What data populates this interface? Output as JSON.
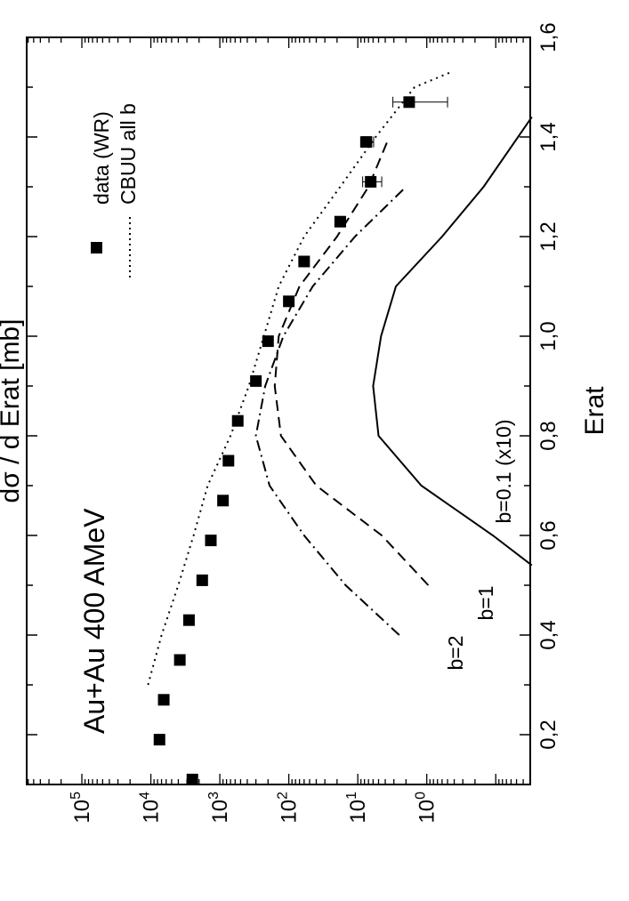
{
  "chart_data": {
    "type": "scatter",
    "orientation": "rotated-90-clockwise",
    "title": "Au+Au  400 AMeV",
    "xlabel": "Erat",
    "ylabel": "dσ / d Erat  [mb]",
    "xlim": [
      0.1,
      1.6
    ],
    "ylim_log10": [
      -1.5,
      5.8
    ],
    "yscale": "log",
    "x_ticks": [
      "0,2",
      "0,4",
      "0,6",
      "0,8",
      "1,0",
      "1,2",
      "1,4",
      "1,6"
    ],
    "x_tick_values": [
      0.2,
      0.4,
      0.6,
      0.8,
      1.0,
      1.2,
      1.4,
      1.6
    ],
    "y_ticks": [
      {
        "value": 1,
        "base": "10",
        "exp": "0"
      },
      {
        "value": 10,
        "base": "10",
        "exp": "1"
      },
      {
        "value": 100,
        "base": "10",
        "exp": "2"
      },
      {
        "value": 1000,
        "base": "10",
        "exp": "3"
      },
      {
        "value": 10000,
        "base": "10",
        "exp": "4"
      },
      {
        "value": 100000,
        "base": "10",
        "exp": "5"
      }
    ],
    "legend": {
      "placement": "top-right",
      "entries": [
        {
          "label": "data (WR)",
          "marker": "square"
        },
        {
          "label": "CBUU all b",
          "linestyle": "dotted"
        }
      ]
    },
    "series": [
      {
        "name": "data (WR)",
        "kind": "points",
        "x": [
          0.11,
          0.19,
          0.27,
          0.35,
          0.43,
          0.51,
          0.59,
          0.67,
          0.75,
          0.83,
          0.91,
          0.99,
          1.07,
          1.15,
          1.23,
          1.31,
          1.39,
          1.47
        ],
        "y": [
          2500,
          7500,
          6500,
          3800,
          2800,
          1800,
          1350,
          900,
          750,
          550,
          300,
          200,
          100,
          60,
          18,
          6.5,
          7.5,
          1.8
        ],
        "y_err": [
          null,
          null,
          null,
          null,
          null,
          null,
          null,
          null,
          null,
          null,
          null,
          null,
          null,
          null,
          3,
          2,
          1.6,
          1.3
        ]
      },
      {
        "name": "CBUU all b",
        "kind": "line",
        "dash": "dotted",
        "x": [
          0.3,
          0.4,
          0.5,
          0.6,
          0.7,
          0.8,
          0.9,
          1.0,
          1.1,
          1.2,
          1.3,
          1.4,
          1.5,
          1.53
        ],
        "y": [
          11000,
          7000,
          4000,
          2400,
          1500,
          700,
          380,
          230,
          140,
          60,
          18,
          5.5,
          1.5,
          0.45
        ]
      },
      {
        "label": "b=1",
        "kind": "line",
        "dash": "dashed",
        "x": [
          0.5,
          0.6,
          0.7,
          0.8,
          0.9,
          1.0,
          1.1,
          1.2,
          1.3,
          1.4
        ],
        "y": [
          0.95,
          4.5,
          40,
          130,
          160,
          140,
          70,
          20,
          7,
          3.5
        ]
      },
      {
        "label": "b=2",
        "kind": "line",
        "dash": "dashdot",
        "x": [
          0.4,
          0.5,
          0.6,
          0.7,
          0.8,
          0.9,
          1.0,
          1.1,
          1.2,
          1.3
        ],
        "y": [
          2.5,
          15,
          60,
          190,
          300,
          220,
          120,
          45,
          11,
          2
        ]
      },
      {
        "label": "b=0.1 (x10)",
        "kind": "line",
        "dash": "solid",
        "x": [
          0.54,
          0.6,
          0.7,
          0.8,
          0.9,
          1.0,
          1.1,
          1.2,
          1.3,
          1.44
        ],
        "y": [
          0.03,
          0.11,
          1.2,
          5,
          6,
          4.6,
          2.8,
          0.6,
          0.15,
          0.03
        ]
      }
    ],
    "annotations": [
      "b=2",
      "b=1",
      "b=0.1 (x10)"
    ],
    "grid": false
  }
}
